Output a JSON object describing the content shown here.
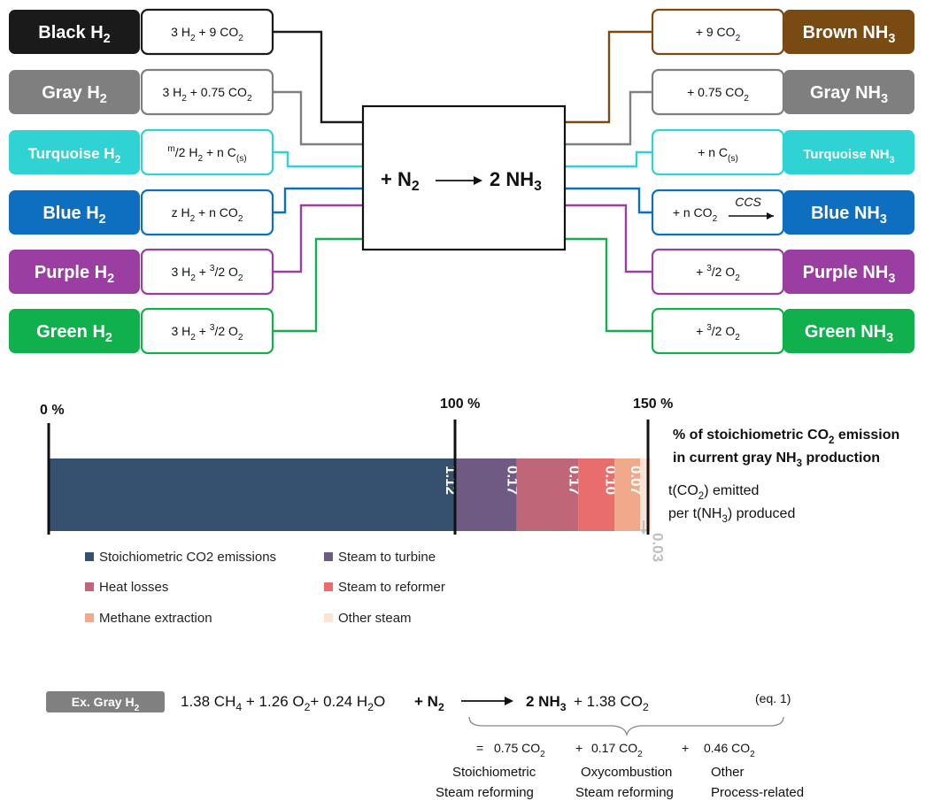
{
  "colors": {
    "black": "#1a1a1a",
    "gray": "#7f7f7f",
    "turquoise": "#2fd3d3",
    "blue": "#0e6fc1",
    "purple": "#9b3ea1",
    "green": "#10b14c",
    "brown": "#7a4a13",
    "bar_stoich": "#36506f",
    "bar_turbine": "#6e5a82",
    "bar_heat": "#bf6679",
    "bar_reformer": "#e96d6d",
    "bar_methane": "#f0a98a",
    "bar_other": "#fbe3d6",
    "label_gray": "#bfbfbf",
    "badge_gray": "#808080"
  },
  "left_rows": [
    {
      "key": "black",
      "name": "Black",
      "sub": "2",
      "formula_a": "3 H",
      "formula_a_sub": "2",
      "formula_b": " + 9 CO",
      "formula_b_sub": "2"
    },
    {
      "key": "gray",
      "name": "Gray",
      "sub": "2",
      "formula_a": "3 H",
      "formula_a_sub": "2",
      "formula_b": " + 0.75 CO",
      "formula_b_sub": "2"
    },
    {
      "key": "turquoise",
      "name": "Turquoise",
      "sub": "2",
      "formula_sup": "m",
      "formula_a": "/2 H",
      "formula_a_sub": "2",
      "formula_b": " + n C",
      "formula_b_sub": "(s)"
    },
    {
      "key": "blue",
      "name": "Blue",
      "sub": "2",
      "formula_a": "z H",
      "formula_a_sub": "2",
      "formula_b": " + n CO",
      "formula_b_sub": "2"
    },
    {
      "key": "purple",
      "name": "Purple",
      "sub": "2",
      "formula_a": "3 H",
      "formula_a_sub": "2",
      "formula_b": " + ",
      "formula_b_sup": "3",
      "formula_c": "/2 O",
      "formula_c_sub": "2"
    },
    {
      "key": "green",
      "name": "Green",
      "sub": "2",
      "formula_a": "3 H",
      "formula_a_sub": "2",
      "formula_b": " + ",
      "formula_b_sup": "3",
      "formula_c": "/2 O",
      "formula_c_sub": "2"
    }
  ],
  "right_rows": [
    {
      "key": "brown",
      "name": "Brown NH",
      "sub": "3",
      "formula": "+  9 CO",
      "formula_sub": "2"
    },
    {
      "key": "gray",
      "name": "Gray NH",
      "sub": "3",
      "formula": "+ 0.75  CO",
      "formula_sub": "2"
    },
    {
      "key": "turquoise",
      "name": "Turquoise NH",
      "sub": "3",
      "formula": "+ n C",
      "formula_sub": "(s)"
    },
    {
      "key": "blue",
      "name": "Blue NH",
      "sub": "3",
      "formula": "+ n CO",
      "formula_sub": "2",
      "ccs": "CCS"
    },
    {
      "key": "purple",
      "name": "Purple NH",
      "sub": "3",
      "formula": "+ ",
      "formula_sup": "3",
      "formula_tail": "/2 O",
      "formula_sub": "2"
    },
    {
      "key": "green",
      "name": "Green NH",
      "sub": "3",
      "formula": "+ ",
      "formula_sup": "3",
      "formula_tail": "/2 O",
      "formula_sub": "2"
    }
  ],
  "center_reaction": {
    "left": "+ N",
    "left_sub": "2",
    "right": "2 NH",
    "right_sub": "3"
  },
  "chart_data": {
    "type": "bar",
    "orientation": "horizontal-stacked",
    "axis_ticks": [
      "0 %",
      "100 %",
      "150 %"
    ],
    "segments": [
      {
        "name": "Stoichiometric CO2 emissions",
        "value": 1.12,
        "label": "1.12"
      },
      {
        "name": "Steam to turbine",
        "value": 0.17,
        "label": "0.17"
      },
      {
        "name": "Heat losses",
        "value": 0.17,
        "label": "0.17"
      },
      {
        "name": "Steam to reformer",
        "value": 0.1,
        "label": "0.10"
      },
      {
        "name": "Methane extraction",
        "value": 0.07,
        "label": "0.07"
      },
      {
        "name": "Other steam",
        "value": 0.03,
        "label": "0.03"
      }
    ],
    "side_title_line1_a": "% of stoichiometric CO",
    "side_title_line1_sub": "2",
    "side_title_line1_b": " emission",
    "side_title_line2_a": "in current gray NH",
    "side_title_line2_sub": "3",
    "side_title_line2_b": " production",
    "unit_line1_a": "t(CO",
    "unit_line1_sub": "2",
    "unit_line1_b": ") emitted",
    "unit_line2_a": "per t(NH",
    "unit_line2_sub": "3",
    "unit_line2_b": ") produced"
  },
  "equation": {
    "badge": "Ex. Gray H",
    "badge_sub": "2",
    "lhs_1": "1.38 CH",
    "lhs_1_sub": "4",
    "lhs_2": " + 1.26 O",
    "lhs_2_sub": "2",
    "lhs_3": "+ 0.24 H",
    "lhs_3_sub": "2",
    "lhs_3b": "O",
    "lhs_4": " + N",
    "lhs_4_sub": "2",
    "rhs_1": "2 NH",
    "rhs_1_sub": "3",
    "rhs_2": " + 1.38 CO",
    "rhs_2_sub": "2",
    "eq_label": "(eq. 1)",
    "breakdown": [
      {
        "prefix": "=",
        "value": "0.75 CO",
        "sub": "2",
        "line1": "Stoichiometric",
        "line2": "Steam reforming"
      },
      {
        "prefix": "+",
        "value": "0.17 CO",
        "sub": "2",
        "line1": "Oxycombustion",
        "line2": "Steam reforming"
      },
      {
        "prefix": "+",
        "value": "0.46 CO",
        "sub": "2",
        "line1": "Other",
        "line2": "Process-related"
      }
    ]
  }
}
